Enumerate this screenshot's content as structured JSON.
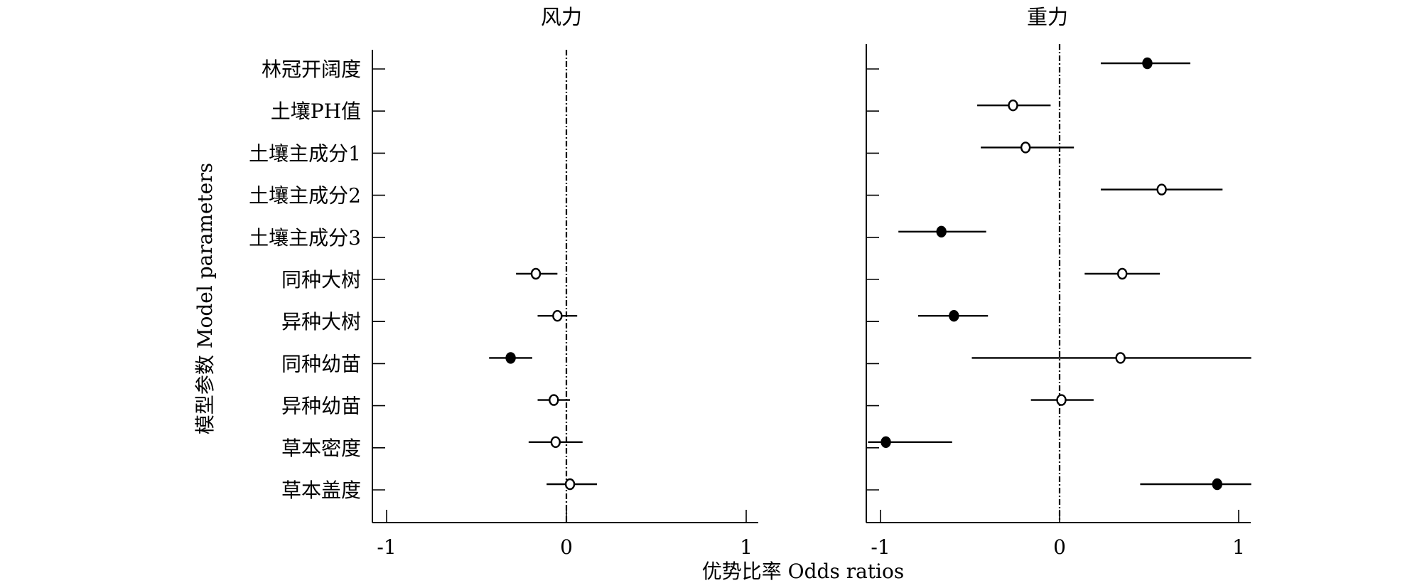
{
  "figure": {
    "ylabel": "模型参数 Model parameters",
    "xlabel": "优势比率 Odds ratios"
  },
  "chart_data": [
    {
      "type": "forest",
      "title": "风力",
      "xlim": [
        -1.07,
        1.07
      ],
      "xticks": [
        -1,
        0,
        1
      ],
      "xtick_labels": [
        "-1",
        "0",
        "1"
      ],
      "reference_line": 0,
      "rows": [
        "林冠开阔度",
        "土壤PH值",
        "土壤主成分1",
        "土壤主成分2",
        "土壤主成分3",
        "同种大树",
        "异种大树",
        "同种幼苗",
        "异种幼苗",
        "草本密度",
        "草本盖度"
      ],
      "points": [
        {
          "row": "同种大树",
          "estimate": -0.17,
          "lower": -0.28,
          "upper": -0.05,
          "significant": false
        },
        {
          "row": "异种大树",
          "estimate": -0.05,
          "lower": -0.16,
          "upper": 0.06,
          "significant": false
        },
        {
          "row": "同种幼苗",
          "estimate": -0.31,
          "lower": -0.43,
          "upper": -0.19,
          "significant": true
        },
        {
          "row": "异种幼苗",
          "estimate": -0.07,
          "lower": -0.16,
          "upper": 0.02,
          "significant": false
        },
        {
          "row": "草本密度",
          "estimate": -0.06,
          "lower": -0.21,
          "upper": 0.09,
          "significant": false
        },
        {
          "row": "草本盖度",
          "estimate": 0.02,
          "lower": -0.11,
          "upper": 0.17,
          "significant": false
        }
      ]
    },
    {
      "type": "forest",
      "title": "重力",
      "xlim": [
        -1.07,
        1.07
      ],
      "xticks": [
        -1,
        0,
        1
      ],
      "xtick_labels": [
        "-1",
        "0",
        "1"
      ],
      "reference_line": 0,
      "rows": [
        "林冠开阔度",
        "土壤PH值",
        "土壤主成分1",
        "土壤主成分2",
        "土壤主成分3",
        "同种大树",
        "异种大树",
        "同种幼苗",
        "异种幼苗",
        "草本密度",
        "草本盖度"
      ],
      "points": [
        {
          "row": "林冠开阔度",
          "estimate": 0.49,
          "lower": 0.23,
          "upper": 0.73,
          "significant": true
        },
        {
          "row": "土壤PH值",
          "estimate": -0.26,
          "lower": -0.46,
          "upper": -0.05,
          "significant": false
        },
        {
          "row": "土壤主成分1",
          "estimate": -0.19,
          "lower": -0.44,
          "upper": 0.08,
          "significant": false
        },
        {
          "row": "土壤主成分2",
          "estimate": 0.57,
          "lower": 0.23,
          "upper": 0.91,
          "significant": false
        },
        {
          "row": "土壤主成分3",
          "estimate": -0.66,
          "lower": -0.9,
          "upper": -0.41,
          "significant": true
        },
        {
          "row": "同种大树",
          "estimate": 0.35,
          "lower": 0.14,
          "upper": 0.56,
          "significant": false
        },
        {
          "row": "异种大树",
          "estimate": -0.59,
          "lower": -0.79,
          "upper": -0.4,
          "significant": true
        },
        {
          "row": "同种幼苗",
          "estimate": 0.34,
          "lower": -0.49,
          "upper": 1.07,
          "significant": false
        },
        {
          "row": "异种幼苗",
          "estimate": 0.01,
          "lower": -0.16,
          "upper": 0.19,
          "significant": false
        },
        {
          "row": "草本密度",
          "estimate": -0.97,
          "lower": -1.07,
          "upper": -0.6,
          "significant": true
        },
        {
          "row": "草本盖度",
          "estimate": 0.88,
          "lower": 0.45,
          "upper": 1.07,
          "significant": true
        }
      ]
    }
  ]
}
